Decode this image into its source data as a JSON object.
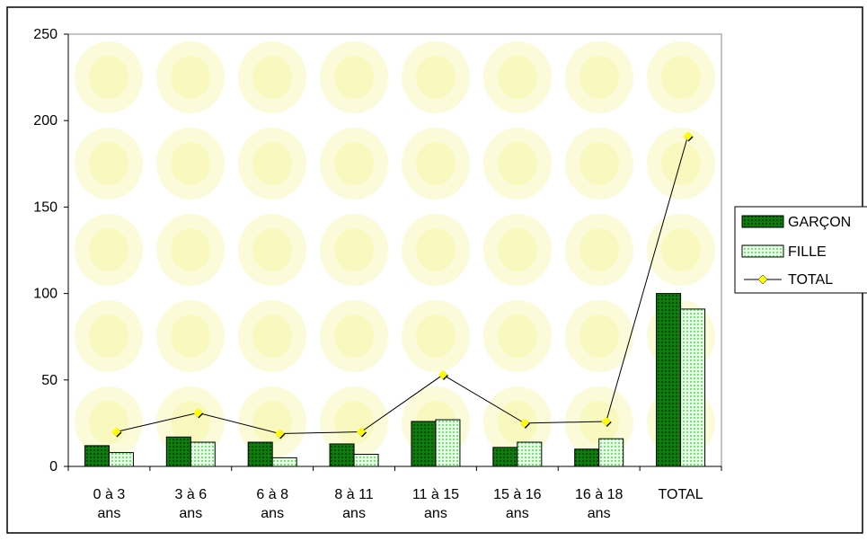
{
  "chart_data": {
    "type": "bar",
    "categories": [
      [
        "0 à 3",
        "ans"
      ],
      [
        "3 à 6",
        "ans"
      ],
      [
        "6 à 8",
        "ans"
      ],
      [
        "8 à 11",
        "ans"
      ],
      [
        "11 à 15",
        "ans"
      ],
      [
        "15 à 16",
        "ans"
      ],
      [
        "16 à 18",
        "ans"
      ],
      [
        "TOTAL"
      ]
    ],
    "series": [
      {
        "name": "GARÇON",
        "type": "bar",
        "values": [
          12,
          17,
          14,
          13,
          26,
          11,
          10,
          100
        ],
        "color": "#0a7a0a"
      },
      {
        "name": "FILLE",
        "type": "bar",
        "values": [
          8,
          14,
          5,
          7,
          27,
          14,
          16,
          91
        ],
        "color": "#a8f0a8"
      },
      {
        "name": "TOTAL",
        "type": "line",
        "values": [
          20,
          31,
          19,
          20,
          53,
          25,
          26,
          191
        ],
        "color": "#ffff00"
      }
    ],
    "ylim": [
      0,
      250
    ],
    "yticks": [
      0,
      50,
      100,
      150,
      200,
      250
    ],
    "legend_position": "right",
    "grid": false
  }
}
